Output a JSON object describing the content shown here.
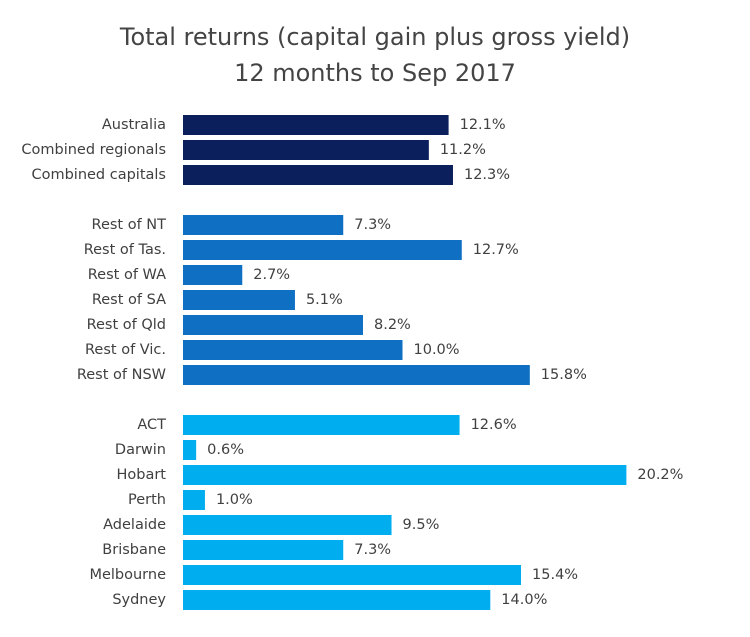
{
  "chart_data": {
    "type": "bar",
    "orientation": "horizontal",
    "title": "Total returns (capital gain plus gross yield)",
    "subtitle": "12 months to Sep 2017",
    "xlabel": "",
    "ylabel": "",
    "grid": false,
    "legend": "none",
    "value_format": "percent_1dp",
    "groups": [
      {
        "color": "#0a1f5c",
        "categories": [
          "Australia",
          "Combined regionals",
          "Combined capitals"
        ],
        "values": [
          12.1,
          11.2,
          12.3
        ]
      },
      {
        "color": "#0e6fc3",
        "categories": [
          "Rest of NT",
          "Rest of Tas.",
          "Rest of WA",
          "Rest of SA",
          "Rest of Qld",
          "Rest of Vic.",
          "Rest of NSW"
        ],
        "values": [
          7.3,
          12.7,
          2.7,
          5.1,
          8.2,
          10.0,
          15.8
        ]
      },
      {
        "color": "#00aeef",
        "categories": [
          "ACT",
          "Darwin",
          "Hobart",
          "Perth",
          "Adelaide",
          "Brisbane",
          "Melbourne",
          "Sydney"
        ],
        "values": [
          12.6,
          0.6,
          20.2,
          1.0,
          9.5,
          7.3,
          15.4,
          14.0
        ]
      }
    ]
  }
}
